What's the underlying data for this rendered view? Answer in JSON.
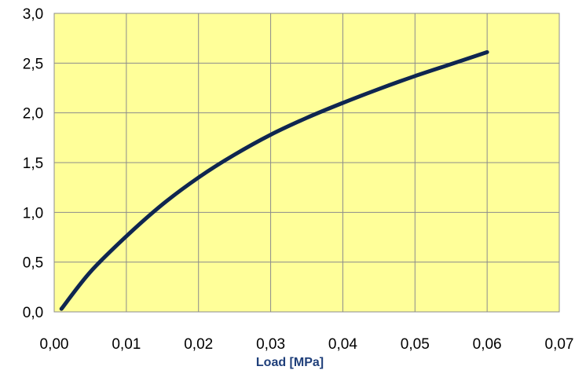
{
  "chart_data": {
    "type": "line",
    "title": "",
    "xlabel": "Load [MPa]",
    "ylabel": "",
    "xlim": [
      0,
      0.07
    ],
    "ylim": [
      0,
      3.0
    ],
    "xticks": [
      0,
      0.01,
      0.02,
      0.03,
      0.04,
      0.05,
      0.06,
      0.07
    ],
    "yticks": [
      0,
      0.5,
      1.0,
      1.5,
      2.0,
      2.5,
      3.0
    ],
    "xtick_labels": [
      "0,00",
      "0,01",
      "0,02",
      "0,03",
      "0,04",
      "0,05",
      "0,06",
      "0,07"
    ],
    "ytick_labels": [
      "0,0",
      "0,5",
      "1,0",
      "1,5",
      "2,0",
      "2,5",
      "3,0"
    ],
    "grid": true,
    "colors": {
      "plot_background": "#ffff99",
      "grid": "#8c8c8c",
      "line": "#0f2650",
      "axis_title": "#1f3f7a"
    },
    "series": [
      {
        "x": [
          0.001,
          0.005,
          0.01,
          0.015,
          0.02,
          0.025,
          0.03,
          0.035,
          0.04,
          0.045,
          0.05,
          0.055,
          0.06
        ],
        "y": [
          0.03,
          0.4,
          0.76,
          1.08,
          1.35,
          1.58,
          1.78,
          1.95,
          2.1,
          2.24,
          2.37,
          2.49,
          2.61
        ]
      }
    ]
  }
}
